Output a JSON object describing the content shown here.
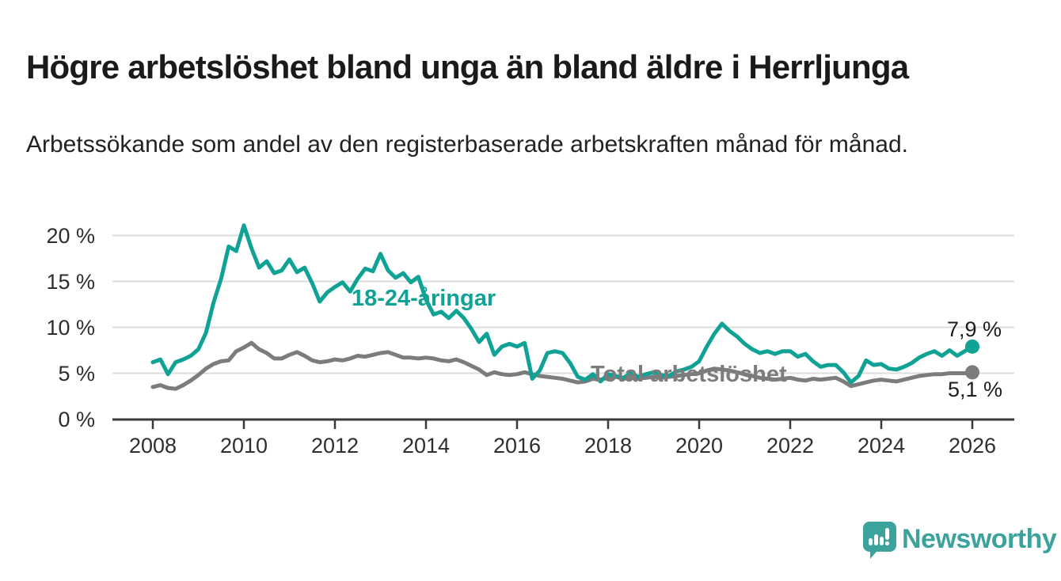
{
  "header": {
    "title": "Högre arbetslöshet bland unga än bland äldre i Herrljunga",
    "subtitle": "Arbetssökande som andel av den registerbaserade arbetskraften månad för månad."
  },
  "chart_data": {
    "type": "line",
    "title": "Högre arbetslöshet bland unga än bland äldre i Herrljunga",
    "subtitle": "Arbetssökande som andel av den registerbaserade arbetskraften månad för månad.",
    "legend": "inline-labels",
    "grid": "horizontal",
    "x_unit": "year (monthly data)",
    "xlim": [
      2007.9,
      2026.9
    ],
    "ylim": [
      0,
      21.5
    ],
    "x_ticks": [
      "2008",
      "2010",
      "2012",
      "2014",
      "2016",
      "2018",
      "2020",
      "2022",
      "2024",
      "2026"
    ],
    "x_tick_years": [
      2008,
      2010,
      2012,
      2014,
      2016,
      2018,
      2020,
      2022,
      2024,
      2026
    ],
    "y_ticks": [
      {
        "value": 0,
        "label": "0 %"
      },
      {
        "value": 5,
        "label": "5 %"
      },
      {
        "value": 10,
        "label": "10 %"
      },
      {
        "value": 15,
        "label": "15 %"
      },
      {
        "value": 20,
        "label": "20 %"
      }
    ],
    "grid_values": [
      5,
      10,
      15,
      20
    ],
    "x_start": 2008.0,
    "x_step": 0.1666667,
    "series": [
      {
        "name": "Total arbetslöshet",
        "color": "#7c7c7c",
        "end_label": "5,1 %",
        "end_value": 5.1,
        "values": [
          3.5,
          3.7,
          3.4,
          3.3,
          3.7,
          4.2,
          4.8,
          5.5,
          6.0,
          6.3,
          6.4,
          7.4,
          7.8,
          8.3,
          7.6,
          7.2,
          6.6,
          6.6,
          7.0,
          7.3,
          6.9,
          6.4,
          6.2,
          6.3,
          6.5,
          6.4,
          6.6,
          6.9,
          6.8,
          7.0,
          7.2,
          7.3,
          7.0,
          6.7,
          6.7,
          6.6,
          6.7,
          6.6,
          6.4,
          6.3,
          6.5,
          6.2,
          5.8,
          5.4,
          4.8,
          5.1,
          4.9,
          4.8,
          4.9,
          5.1,
          4.9,
          4.7,
          4.6,
          4.5,
          4.4,
          4.2,
          4.0,
          4.1,
          4.4,
          4.3,
          4.5,
          4.6,
          4.4,
          4.5,
          4.4,
          4.5,
          4.6,
          4.5,
          4.6,
          4.7,
          4.8,
          4.9,
          5.0,
          5.3,
          5.5,
          5.4,
          5.3,
          5.1,
          4.9,
          4.7,
          4.5,
          4.4,
          4.3,
          4.4,
          4.5,
          4.3,
          4.2,
          4.4,
          4.3,
          4.4,
          4.5,
          4.1,
          3.6,
          3.8,
          4.0,
          4.2,
          4.3,
          4.2,
          4.1,
          4.3,
          4.5,
          4.7,
          4.8,
          4.9,
          4.9,
          5.0,
          5.0,
          5.0,
          5.1
        ]
      },
      {
        "name": "18-24-åringar",
        "color": "#10a294",
        "end_label": "7,9 %",
        "end_value": 7.9,
        "values": [
          6.2,
          6.5,
          4.9,
          6.2,
          6.5,
          6.9,
          7.6,
          9.4,
          12.7,
          15.3,
          18.8,
          18.3,
          21.1,
          18.6,
          16.5,
          17.2,
          15.9,
          16.2,
          17.4,
          16.0,
          16.5,
          14.8,
          12.8,
          13.8,
          14.4,
          14.9,
          13.9,
          15.3,
          16.4,
          16.1,
          18.0,
          16.2,
          15.4,
          15.9,
          14.9,
          15.5,
          13.0,
          11.4,
          11.7,
          11.0,
          11.8,
          11.0,
          9.8,
          8.4,
          9.3,
          7.0,
          7.9,
          8.2,
          7.9,
          8.3,
          4.4,
          5.3,
          7.2,
          7.4,
          7.2,
          6.1,
          4.6,
          4.3,
          4.9,
          4.1,
          4.9,
          4.7,
          4.5,
          5.0,
          4.6,
          4.9,
          5.1,
          4.8,
          4.7,
          5.2,
          5.4,
          5.7,
          6.3,
          7.9,
          9.3,
          10.4,
          9.6,
          9.0,
          8.2,
          7.6,
          7.2,
          7.4,
          7.1,
          7.4,
          7.4,
          6.8,
          7.1,
          6.3,
          5.7,
          5.9,
          5.9,
          5.1,
          4.0,
          4.7,
          6.4,
          5.9,
          6.0,
          5.5,
          5.4,
          5.7,
          6.1,
          6.7,
          7.1,
          7.4,
          6.9,
          7.5,
          6.9,
          7.4,
          7.9
        ]
      }
    ]
  },
  "branding": {
    "wordmark": "Newsworthy",
    "logo_icon": "speech-bubble-bar-chart-exclamation",
    "brand_color": "#3ba39c"
  },
  "colors": {
    "youth_line": "#10a294",
    "total_line": "#7c7c7c",
    "gridline": "#dcdcdc",
    "axis": "#3a3a3a",
    "text": "#1a1a1a"
  }
}
